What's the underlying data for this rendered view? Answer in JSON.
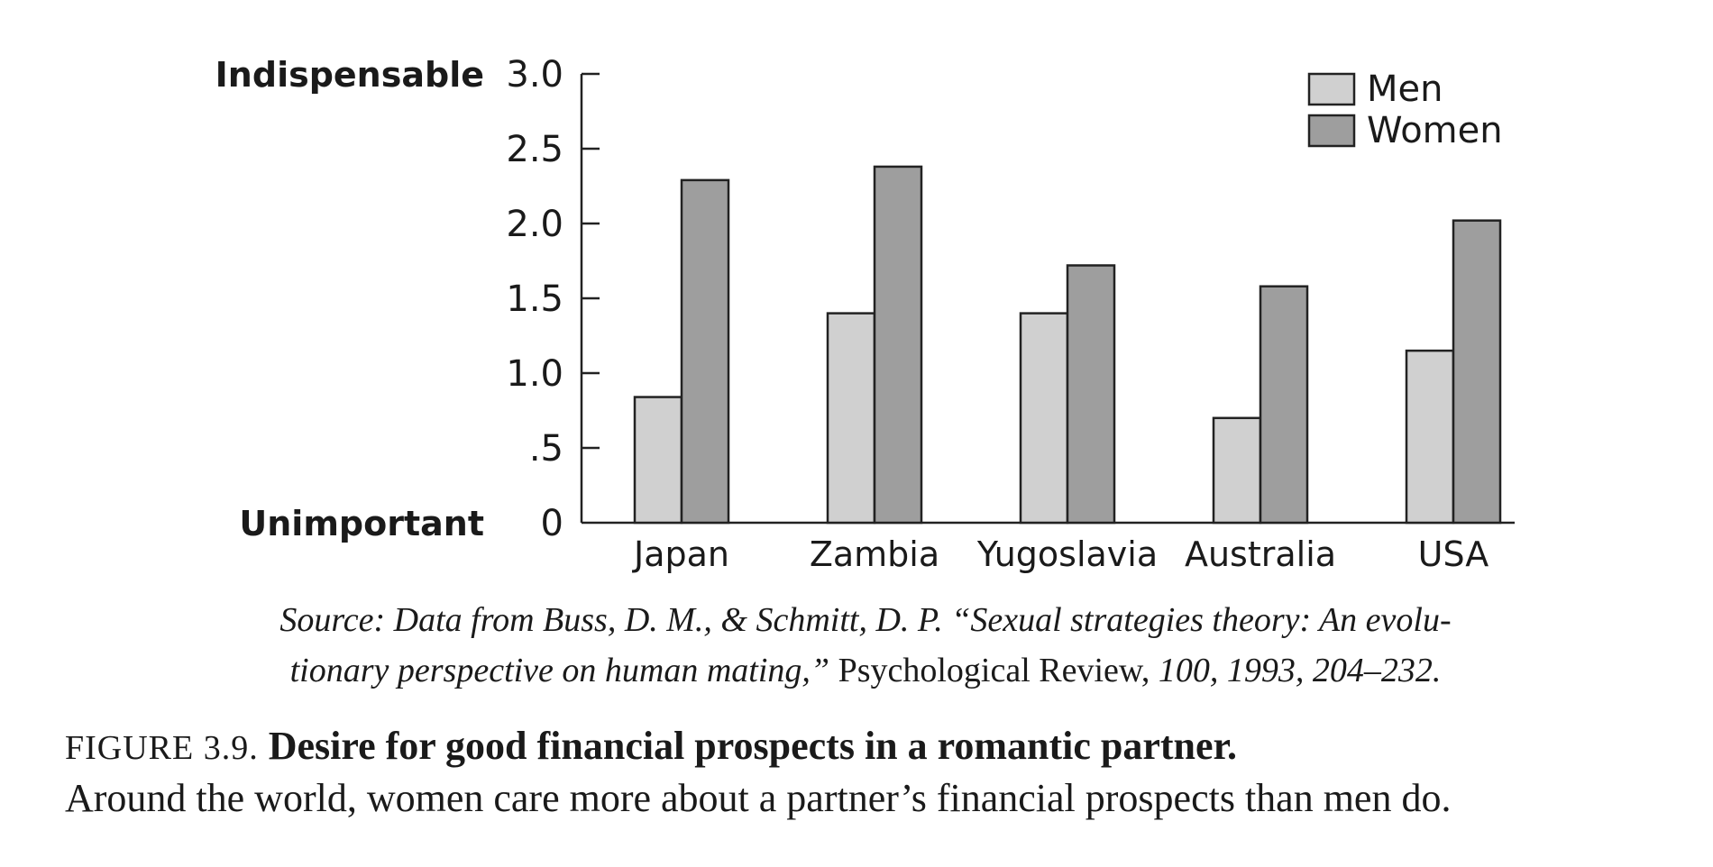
{
  "chart_data": {
    "type": "bar",
    "categories": [
      "Japan",
      "Zambia",
      "Yugoslavia",
      "Australia",
      "USA"
    ],
    "series": [
      {
        "name": "Men",
        "values": [
          0.84,
          1.4,
          1.4,
          0.7,
          1.15
        ],
        "color": "#d0d0d0"
      },
      {
        "name": "Women",
        "values": [
          2.29,
          2.38,
          1.72,
          1.58,
          2.02
        ],
        "color": "#9e9e9e"
      }
    ],
    "ylim": [
      0,
      3.0
    ],
    "yticks": [
      {
        "value": 0,
        "label": "0"
      },
      {
        "value": 0.5,
        "label": ".5"
      },
      {
        "value": 1.0,
        "label": "1.0"
      },
      {
        "value": 1.5,
        "label": "1.5"
      },
      {
        "value": 2.0,
        "label": "2.0"
      },
      {
        "value": 2.5,
        "label": "2.5"
      },
      {
        "value": 3.0,
        "label": "3.0"
      }
    ],
    "y_anchor_top": "Indispensable",
    "y_anchor_bottom": "Unimportant",
    "legend_position": "top-right",
    "grid": false
  },
  "source": {
    "prefix": "Source: Data from Buss, D. M., & Schmitt, D. P. “Sexual strategies theory: An evolu-",
    "line2_italic": "tionary perspective on human mating,”",
    "journal": " Psychological Review, ",
    "suffix": "100, 1993, 204–232."
  },
  "caption": {
    "figure_label": "FIGURE 3.9.",
    "title": "Desire for good financial prospects in a romantic partner.",
    "text": "Around the world, women care more about a partner’s financial prospects than men do."
  }
}
